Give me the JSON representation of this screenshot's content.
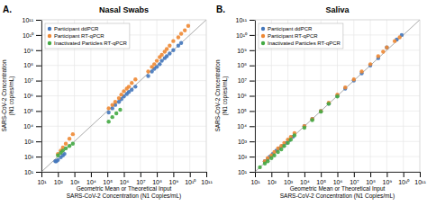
{
  "chart_data": [
    {
      "type": "scatter",
      "title": "Nasal Swabs",
      "panel_label": "A.",
      "xlabel": "Geometric Mean or Theoretical Input\nSARS-CoV-2 Concentration (N1 Copies/mL)",
      "ylabel": "SARS-CoV-2 Concentration\n(N1 copies/mL)",
      "log": true,
      "grid": true,
      "legend": "upper left",
      "xlim": [
        10.0,
        100000000000.0
      ],
      "ylim": [
        10.0,
        100000000000.0
      ],
      "xticks": [
        {
          "value": 10.0,
          "label": "10¹"
        },
        {
          "value": 100.0,
          "label": "10²"
        },
        {
          "value": 1000.0,
          "label": "10³"
        },
        {
          "value": 10000.0,
          "label": "10⁴"
        },
        {
          "value": 100000.0,
          "label": "10⁵"
        },
        {
          "value": 1000000.0,
          "label": "10⁶"
        },
        {
          "value": 10000000.0,
          "label": "10⁷"
        },
        {
          "value": 100000000.0,
          "label": "10⁸"
        },
        {
          "value": 1000000000.0,
          "label": "10⁹"
        },
        {
          "value": 10000000000.0,
          "label": "10¹⁰"
        },
        {
          "value": 100000000000.0,
          "label": "10¹¹"
        }
      ],
      "yticks": [
        {
          "value": 10.0,
          "label": "10¹"
        },
        {
          "value": 100.0,
          "label": "10²"
        },
        {
          "value": 1000.0,
          "label": "10³"
        },
        {
          "value": 10000.0,
          "label": "10⁴"
        },
        {
          "value": 100000.0,
          "label": "10⁵"
        },
        {
          "value": 1000000.0,
          "label": "10⁶"
        },
        {
          "value": 10000000.0,
          "label": "10⁷"
        },
        {
          "value": 100000000.0,
          "label": "10⁸"
        },
        {
          "value": 1000000000.0,
          "label": "10⁹"
        },
        {
          "value": 10000000000.0,
          "label": "10¹⁰"
        },
        {
          "value": 100000000000.0,
          "label": "10¹¹"
        }
      ],
      "identity_line": {
        "x": [
          10.0,
          200000000000.0
        ],
        "y": [
          10.0,
          200000000000.0
        ],
        "color": "#aaaaaa"
      },
      "series": [
        {
          "name": "Participant ddPCR",
          "color": "#4477BB",
          "x": [
            70.0,
            80.0,
            100.0,
            150.0,
            200.0,
            250.0,
            120000.0,
            200000.0,
            300000.0,
            500000.0,
            700000.0,
            1000000.0,
            1500000.0,
            2000000.0,
            3000000.0,
            5000000.0,
            30000000.0,
            50000000.0,
            70000000.0,
            100000000.0,
            150000000.0,
            200000000.0,
            300000000.0,
            400000000.0,
            600000000.0,
            1000000000.0,
            2000000000.0,
            3000000000.0
          ],
          "values": [
            50.0,
            50.0,
            60.0,
            90.0,
            120.0,
            150.0,
            80000.0,
            150000.0,
            250000.0,
            400000.0,
            600000.0,
            900000.0,
            1300000.0,
            1800000.0,
            2500000.0,
            4000000.0,
            20000000.0,
            40000000.0,
            60000000.0,
            80000000.0,
            120000000.0,
            200000000.0,
            300000000.0,
            400000000.0,
            600000000.0,
            1000000000.0,
            2000000000.0,
            3000000000.0
          ]
        },
        {
          "name": "Participant RT-qPCR",
          "color": "#EE8833",
          "x": [
            100.0,
            150.0,
            200.0,
            300.0,
            500.0,
            800.0,
            120000.0,
            200000.0,
            300000.0,
            500000.0,
            700000.0,
            1000000.0,
            1500000.0,
            2000000.0,
            3000000.0,
            5000000.0,
            30000000.0,
            50000000.0,
            70000000.0,
            100000000.0,
            150000000.0,
            200000000.0,
            300000000.0,
            400000000.0,
            600000000.0,
            1000000000.0,
            2000000000.0,
            3000000000.0,
            5000000000.0,
            8000000000.0
          ],
          "values": [
            150.0,
            250.0,
            400.0,
            700.0,
            1500.0,
            3000.0,
            150000.0,
            250000.0,
            400000.0,
            700000.0,
            1200000.0,
            2000000.0,
            3000000.0,
            4000000.0,
            7000000.0,
            12000000.0,
            40000000.0,
            80000000.0,
            120000000.0,
            200000000.0,
            350000000.0,
            500000000.0,
            800000000.0,
            1200000000.0,
            2000000000.0,
            4000000000.0,
            7000000000.0,
            12000000000.0,
            20000000000.0,
            40000000000.0
          ]
        },
        {
          "name": "Inactivated Particles RT-qPCR",
          "color": "#44AA44",
          "x": [
            100.0,
            150.0,
            200.0,
            300.0,
            500.0,
            800.0,
            120000.0,
            200000.0,
            350000.0,
            600000.0
          ],
          "values": [
            120.0,
            180.0,
            250.0,
            350.0,
            500.0,
            700.0,
            20000.0,
            40000.0,
            70000.0,
            120000.0
          ]
        }
      ]
    },
    {
      "type": "scatter",
      "title": "Saliva",
      "panel_label": "B.",
      "xlabel": "Geometric Mean or Theoretical Input\nSARS-CoV-2 Concentration (N1 Copies/mL)",
      "ylabel": "SARS-CoV-2 Concentration\n(N1 copies/mL)",
      "log": true,
      "grid": true,
      "legend": "upper left",
      "xlim": [
        10.0,
        100000000000.0
      ],
      "ylim": [
        10.0,
        100000000000.0
      ],
      "xticks": [
        {
          "value": 10.0,
          "label": "10¹"
        },
        {
          "value": 100.0,
          "label": "10²"
        },
        {
          "value": 1000.0,
          "label": "10³"
        },
        {
          "value": 10000.0,
          "label": "10⁴"
        },
        {
          "value": 100000.0,
          "label": "10⁵"
        },
        {
          "value": 1000000.0,
          "label": "10⁶"
        },
        {
          "value": 10000000.0,
          "label": "10⁷"
        },
        {
          "value": 100000000.0,
          "label": "10⁸"
        },
        {
          "value": 1000000000.0,
          "label": "10⁹"
        },
        {
          "value": 10000000000.0,
          "label": "10¹⁰"
        },
        {
          "value": 100000000000.0,
          "label": "10¹¹"
        }
      ],
      "yticks": [
        {
          "value": 10.0,
          "label": "10¹"
        },
        {
          "value": 100.0,
          "label": "10²"
        },
        {
          "value": 1000.0,
          "label": "10³"
        },
        {
          "value": 10000.0,
          "label": "10⁴"
        },
        {
          "value": 100000.0,
          "label": "10⁵"
        },
        {
          "value": 1000000.0,
          "label": "10⁶"
        },
        {
          "value": 10000000.0,
          "label": "10⁷"
        },
        {
          "value": 100000000.0,
          "label": "10⁸"
        },
        {
          "value": 1000000000.0,
          "label": "10⁹"
        },
        {
          "value": 10000000000.0,
          "label": "10¹⁰"
        },
        {
          "value": 100000000000.0,
          "label": "10¹¹"
        }
      ],
      "identity_line": {
        "x": [
          10.0,
          200000000000.0
        ],
        "y": [
          10.0,
          200000000000.0
        ],
        "color": "#aaaaaa"
      },
      "series": [
        {
          "name": "Participant ddPCR",
          "color": "#4477BB",
          "x": [
            40.0,
            60.0,
            80.0,
            120.0,
            200.0,
            300.0,
            500.0,
            800.0,
            1200.0,
            2000.0,
            10000.0,
            30000.0,
            100000.0,
            300000.0,
            1000000.0,
            3000000.0,
            10000000.0,
            30000000.0,
            100000000.0,
            300000000.0,
            1000000000.0,
            4000000000.0,
            8000000000.0
          ],
          "values": [
            50.0,
            70.0,
            100.0,
            150.0,
            250.0,
            350.0,
            500.0,
            800.0,
            1200.0,
            2000.0,
            10000.0,
            30000.0,
            100000.0,
            300000.0,
            1000000.0,
            3000000.0,
            10000000.0,
            30000000.0,
            100000000.0,
            300000000.0,
            1500000000.0,
            5000000000.0,
            10000000000.0
          ]
        },
        {
          "name": "Participant RT-qPCR",
          "color": "#EE8833",
          "x": [
            40.0,
            60.0,
            100.0,
            150.0,
            250.0,
            400.0,
            600.0,
            1000.0,
            1500.0,
            2500.0,
            10000.0,
            30000.0,
            100000.0,
            300000.0,
            1000000.0,
            3000000.0,
            10000000.0,
            30000000.0,
            100000000.0,
            300000000.0,
            600000000.0,
            1000000000.0,
            3000000000.0,
            6000000000.0
          ],
          "values": [
            50.0,
            80.0,
            120.0,
            200.0,
            350.0,
            500.0,
            800.0,
            1300.0,
            2000.0,
            3500.0,
            10000.0,
            30000.0,
            100000.0,
            350000.0,
            1200000.0,
            3500000.0,
            12000000.0,
            40000000.0,
            120000000.0,
            400000000.0,
            800000000.0,
            1500000000.0,
            4000000000.0,
            7000000000.0
          ]
        },
        {
          "name": "Inactivated Particles RT-qPCR",
          "color": "#44AA44",
          "x": [
            20.0,
            40.0,
            60.0,
            100.0,
            150.0,
            250.0,
            400.0,
            600.0,
            1000.0,
            1500.0,
            2500.0,
            10000.0,
            30000.0,
            100000.0,
            300000.0,
            1000000.0
          ],
          "values": [
            20.0,
            35.0,
            50.0,
            80.0,
            120.0,
            200.0,
            300.0,
            500.0,
            800.0,
            1300.0,
            2500.0,
            8000.0,
            25000.0,
            90000.0,
            300000.0,
            900000.0
          ]
        }
      ]
    }
  ]
}
